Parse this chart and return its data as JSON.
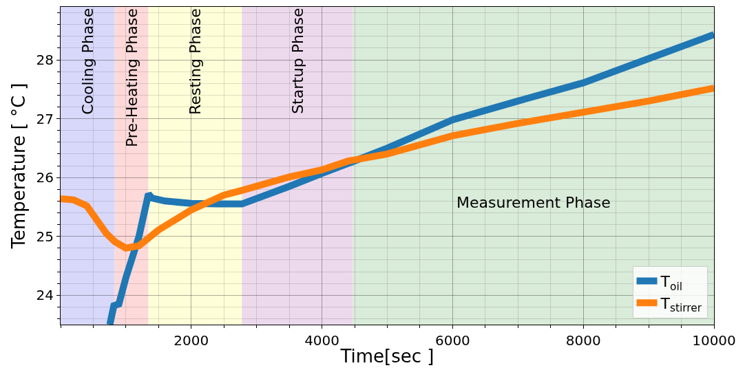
{
  "chart_data": {
    "type": "line",
    "xlabel": "Time[sec ]",
    "ylabel": "Temperature [ °C ]",
    "xlim": [
      0,
      10000
    ],
    "ylim": [
      23.5,
      28.9
    ],
    "xticks": [
      2000,
      4000,
      6000,
      8000,
      10000
    ],
    "yticks": [
      24,
      25,
      26,
      27,
      28
    ],
    "grid": true,
    "legend": "bottom right",
    "line_style": "solid",
    "marker": "none",
    "series": [
      {
        "name": "T$_{oil}$",
        "color": "#1f77b4",
        "x": [
          754,
          815,
          892,
          1000,
          1200,
          1344,
          1400,
          1600,
          2000,
          2400,
          2774,
          3500,
          4000,
          4473,
          5000,
          6000,
          7000,
          8000,
          9000,
          10000
        ],
        "values": [
          23.5,
          23.82,
          23.85,
          24.3,
          25.0,
          25.72,
          25.65,
          25.6,
          25.56,
          25.55,
          25.55,
          25.85,
          26.07,
          26.27,
          26.5,
          26.98,
          27.3,
          27.61,
          28.02,
          28.43
        ]
      },
      {
        "name": "T$_{stirrer}$",
        "color": "#ff7f0e",
        "x": [
          0,
          200,
          400,
          700,
          830,
          1000,
          1200,
          1500,
          2000,
          2500,
          2774,
          3500,
          4000,
          4400,
          5000,
          6000,
          7000,
          8000,
          9000,
          10000
        ],
        "values": [
          25.64,
          25.62,
          25.52,
          25.05,
          24.91,
          24.8,
          24.84,
          25.11,
          25.45,
          25.7,
          25.78,
          26.01,
          26.13,
          26.28,
          26.4,
          26.71,
          26.92,
          27.11,
          27.3,
          27.52
        ]
      }
    ],
    "bands": [
      {
        "axis": "x",
        "from": 0,
        "to": 828,
        "label": "Cooling Phase",
        "color": "#d8d8fb"
      },
      {
        "axis": "x",
        "from": 828,
        "to": 1344,
        "label": "Pre-Heating Phase",
        "color": "#fdd9d9"
      },
      {
        "axis": "x",
        "from": 1344,
        "to": 2774,
        "label": "Resting Phase",
        "color": "#fefed9"
      },
      {
        "axis": "x",
        "from": 2774,
        "to": 4473,
        "label": "Startup Phase",
        "color": "#ecd9ec"
      },
      {
        "axis": "x",
        "from": 4473,
        "to": 10000,
        "label": "Measurement Phase",
        "color": "#d9ebd9"
      }
    ]
  }
}
